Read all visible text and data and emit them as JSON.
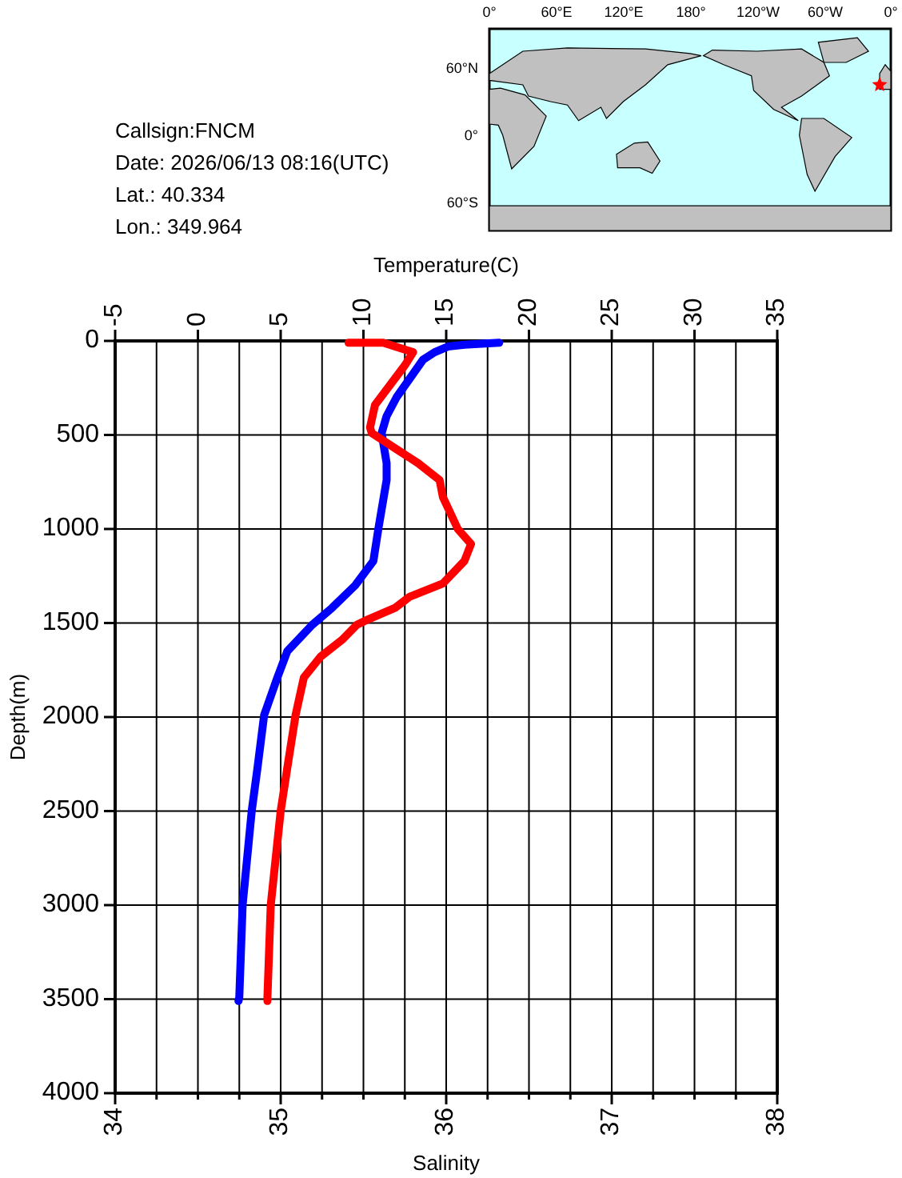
{
  "chart_data": {
    "type": "line",
    "xlabel": "Salinity",
    "x2label": "Temperature(C)",
    "ylabel": "Depth(m)",
    "annotations": [
      "Callsign:FNCM",
      "Date:  2026/06/13 08:16(UTC)",
      "Lat.:   40.334",
      "Lon.:  349.964",
      "0°",
      "60°E",
      "120°E",
      "180°",
      "120°W",
      "60°W",
      "0°",
      "60°N",
      "0°",
      "60°S"
    ],
    "xlim": [
      34,
      38
    ],
    "xticks": [
      34,
      {
        "value": 34.25,
        "label": null
      },
      {
        "value": 34.5,
        "label": null
      },
      {
        "value": 34.75,
        "label": null
      },
      35,
      {
        "value": 35.25,
        "label": null
      },
      {
        "value": 35.5,
        "label": null
      },
      {
        "value": 35.75,
        "label": null
      },
      36,
      {
        "value": 36.25,
        "label": null
      },
      {
        "value": 36.5,
        "label": null
      },
      {
        "value": 36.75,
        "label": null
      },
      37,
      {
        "value": 37.25,
        "label": null
      },
      {
        "value": 37.5,
        "label": null
      },
      {
        "value": 37.75,
        "label": null
      },
      38
    ],
    "x2lim": [
      -5,
      35
    ],
    "x2ticks": [
      -5,
      0,
      5,
      10,
      15,
      20,
      25,
      30,
      35
    ],
    "ylim": [
      4000,
      0
    ],
    "yticks": [
      0,
      500,
      1000,
      1500,
      2000,
      2500,
      3000,
      3500,
      4000
    ],
    "grid": true,
    "line_style": "solid",
    "series": [
      {
        "color": "#0000ff",
        "axis": "x2",
        "x": [
          18.2,
          16.1,
          15.1,
          14.3,
          13.6,
          12.8,
          12.0,
          11.4,
          11.1,
          11.4,
          11.4,
          10.9,
          10.6,
          9.5,
          8.1,
          6.9,
          5.4,
          4.8,
          4.0,
          3.6,
          3.25,
          2.7,
          2.5,
          2.45
        ],
        "values": [
          10,
          20,
          30,
          60,
          100,
          200,
          300,
          400,
          490,
          650,
          740,
          1000,
          1170,
          1300,
          1420,
          1510,
          1650,
          1790,
          1990,
          2270,
          2500,
          3000,
          3490,
          3510
        ]
      },
      {
        "color": "#ff0000",
        "x": [
          35.41,
          35.62,
          35.8,
          35.75,
          35.57,
          35.54,
          35.55,
          35.69,
          35.83,
          35.96,
          35.98,
          36.07,
          36.15,
          36.11,
          35.98,
          35.78,
          35.69,
          35.53,
          35.46,
          35.37,
          35.24,
          35.14,
          35.09,
          35.04,
          35.0,
          34.94,
          34.92,
          34.92
        ],
        "values": [
          10,
          10,
          60,
          130,
          340,
          460,
          490,
          570,
          650,
          740,
          830,
          1000,
          1080,
          1170,
          1290,
          1360,
          1420,
          1480,
          1510,
          1590,
          1680,
          1790,
          1990,
          2270,
          2500,
          3000,
          3490,
          3510
        ]
      }
    ]
  }
}
